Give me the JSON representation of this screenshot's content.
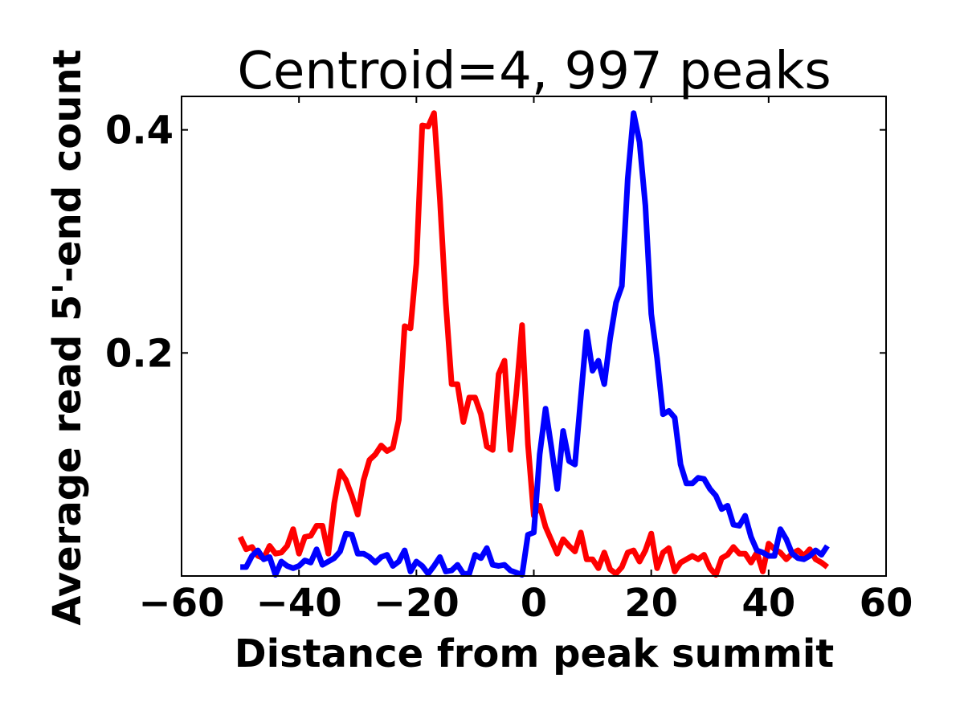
{
  "chart_data": {
    "type": "line",
    "title": "Centroid=4, 997 peaks",
    "xlabel": "Distance from peak summit",
    "ylabel": "Average read 5'-end count",
    "xlim": [
      -60,
      60
    ],
    "ylim": [
      0.0,
      0.43
    ],
    "xticks": [
      -60,
      -40,
      -20,
      0,
      20,
      40,
      60
    ],
    "xtick_labels": [
      "−60",
      "−40",
      "−20",
      "0",
      "20",
      "40",
      "60"
    ],
    "yticks": [
      0.2,
      0.4
    ],
    "ytick_labels": [
      "0.2",
      "0.4"
    ],
    "grid": false,
    "legend": "none",
    "series": [
      {
        "color": "#ff0000",
        "x": [
          -50,
          -49,
          -48,
          -47,
          -46,
          -45,
          -44,
          -43,
          -42,
          -41,
          -40,
          -39,
          -38,
          -37,
          -36,
          -35,
          -34,
          -33,
          -32,
          -31,
          -30,
          -29,
          -28,
          -27,
          -26,
          -25,
          -24,
          -23,
          -22,
          -21,
          -20,
          -19,
          -18,
          -17,
          -16,
          -15,
          -14,
          -13,
          -12,
          -11,
          -10,
          -9,
          -8,
          -7,
          -6,
          -5,
          -4,
          -3,
          -2,
          -1,
          0,
          1,
          2,
          3,
          4,
          5,
          6,
          7,
          8,
          9,
          10,
          11,
          12,
          13,
          14,
          15,
          16,
          17,
          18,
          19,
          20,
          21,
          22,
          23,
          24,
          25,
          26,
          27,
          28,
          29,
          30,
          31,
          32,
          33,
          34,
          35,
          36,
          37,
          38,
          39,
          40,
          41,
          42,
          43,
          44,
          45,
          46,
          47,
          48,
          49,
          50
        ],
        "values": [
          0.035,
          0.024,
          0.026,
          0.018,
          0.016,
          0.027,
          0.02,
          0.021,
          0.027,
          0.042,
          0.02,
          0.035,
          0.036,
          0.045,
          0.045,
          0.02,
          0.065,
          0.094,
          0.086,
          0.072,
          0.055,
          0.086,
          0.104,
          0.109,
          0.117,
          0.112,
          0.115,
          0.14,
          0.224,
          0.222,
          0.28,
          0.404,
          0.403,
          0.415,
          0.338,
          0.245,
          0.172,
          0.172,
          0.138,
          0.16,
          0.16,
          0.145,
          0.116,
          0.113,
          0.181,
          0.193,
          0.113,
          0.163,
          0.225,
          0.118,
          0.054,
          0.063,
          0.044,
          0.032,
          0.02,
          0.033,
          0.027,
          0.022,
          0.039,
          0.015,
          0.015,
          0.007,
          0.021,
          0.006,
          0.002,
          0.008,
          0.021,
          0.023,
          0.013,
          0.023,
          0.038,
          0.007,
          0.021,
          0.025,
          0.004,
          0.012,
          0.015,
          0.018,
          0.015,
          0.019,
          0.007,
          0.001,
          0.016,
          0.019,
          0.026,
          0.02,
          0.02,
          0.012,
          0.021,
          0.004,
          0.029,
          0.024,
          0.021,
          0.015,
          0.02,
          0.023,
          0.018,
          0.024,
          0.015,
          0.012,
          0.008
        ]
      },
      {
        "color": "#0000ff",
        "x": [
          -50,
          -49,
          -48,
          -47,
          -46,
          -45,
          -44,
          -43,
          -42,
          -41,
          -40,
          -39,
          -38,
          -37,
          -36,
          -35,
          -34,
          -33,
          -32,
          -31,
          -30,
          -29,
          -28,
          -27,
          -26,
          -25,
          -24,
          -23,
          -22,
          -21,
          -20,
          -19,
          -18,
          -17,
          -16,
          -15,
          -14,
          -13,
          -12,
          -11,
          -10,
          -9,
          -8,
          -7,
          -6,
          -5,
          -4,
          -3,
          -2,
          -1,
          0,
          1,
          2,
          3,
          4,
          5,
          6,
          7,
          8,
          9,
          10,
          11,
          12,
          13,
          14,
          15,
          16,
          17,
          18,
          19,
          20,
          21,
          22,
          23,
          24,
          25,
          26,
          27,
          28,
          29,
          30,
          31,
          32,
          33,
          34,
          35,
          36,
          37,
          38,
          39,
          40,
          41,
          42,
          43,
          44,
          45,
          46,
          47,
          48,
          49,
          50
        ],
        "values": [
          0.008,
          0.008,
          0.018,
          0.023,
          0.015,
          0.017,
          0.001,
          0.013,
          0.009,
          0.007,
          0.009,
          0.014,
          0.012,
          0.024,
          0.01,
          0.013,
          0.016,
          0.022,
          0.038,
          0.037,
          0.02,
          0.02,
          0.017,
          0.012,
          0.017,
          0.019,
          0.009,
          0.013,
          0.023,
          0.004,
          0.013,
          0.009,
          0.002,
          0.009,
          0.017,
          0.004,
          0.005,
          0.01,
          0.002,
          0.002,
          0.019,
          0.016,
          0.025,
          0.01,
          0.009,
          0.01,
          0.005,
          0.003,
          0.001,
          0.037,
          0.039,
          0.109,
          0.15,
          0.115,
          0.078,
          0.13,
          0.103,
          0.1,
          0.16,
          0.219,
          0.184,
          0.193,
          0.172,
          0.213,
          0.245,
          0.26,
          0.356,
          0.415,
          0.389,
          0.332,
          0.235,
          0.195,
          0.145,
          0.148,
          0.142,
          0.1,
          0.083,
          0.083,
          0.088,
          0.087,
          0.078,
          0.072,
          0.06,
          0.063,
          0.046,
          0.045,
          0.054,
          0.035,
          0.023,
          0.021,
          0.018,
          0.018,
          0.042,
          0.033,
          0.02,
          0.016,
          0.015,
          0.018,
          0.023,
          0.019,
          0.027
        ]
      }
    ]
  }
}
